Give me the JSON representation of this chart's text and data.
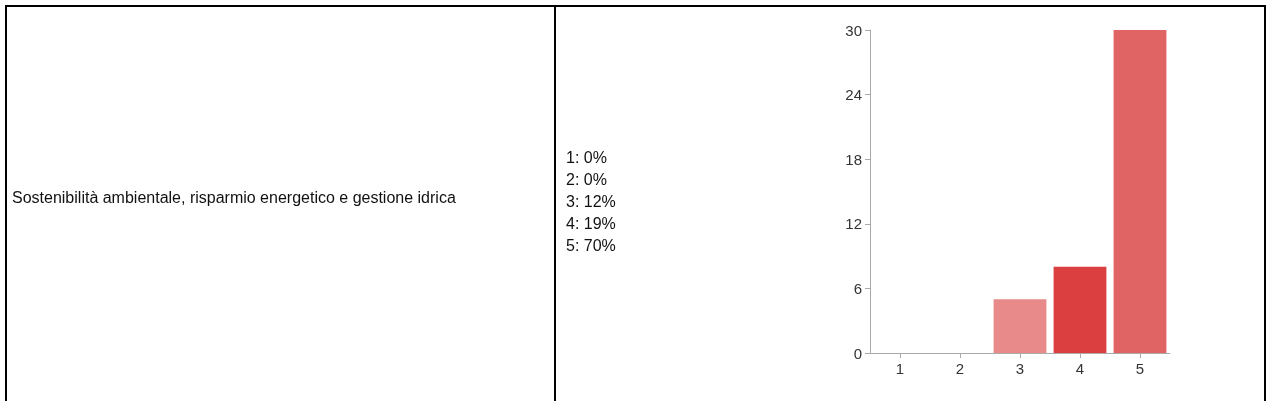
{
  "chart_data": {
    "type": "bar",
    "title": "Sostenibilità ambientale, risparmio energetico e gestione idrica",
    "categories": [
      "1",
      "2",
      "3",
      "4",
      "5"
    ],
    "values": [
      0,
      0,
      5,
      8,
      30
    ],
    "colors": [
      "#e88a8a",
      "#e88a8a",
      "#e88a8a",
      "#dc3f3f",
      "#e06464"
    ],
    "ylim": [
      0,
      30
    ],
    "yticks": [
      0,
      6,
      12,
      18,
      24,
      30
    ],
    "grid": false,
    "annotations": [
      "1: 0%",
      "2: 0%",
      "3: 12%",
      "4: 19%",
      "5: 70%"
    ]
  }
}
